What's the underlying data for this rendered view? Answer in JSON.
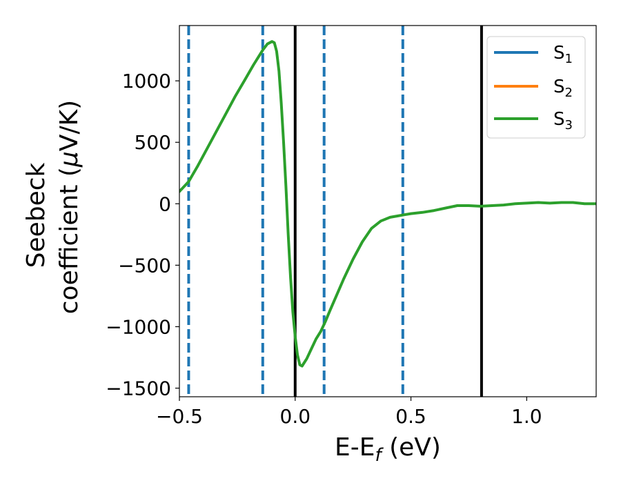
{
  "chart_data": {
    "type": "line",
    "xlabel": "E-E_f (eV)",
    "xlabel_parts": {
      "base": "E-E",
      "sub": "f",
      "unit": " (eV)"
    },
    "ylabel": "Seebeck coefficient (μV/K)",
    "ylabel_lines": [
      "Seebeck",
      "coefficient  (μV/K)"
    ],
    "ylabel_parts": {
      "line2_text": "coefficient  (",
      "mu": "μ",
      "unit": "V/K)"
    },
    "xlim": [
      -0.5,
      1.3
    ],
    "ylim": [
      -1570,
      1450
    ],
    "xticks": [
      -0.5,
      0.0,
      0.5,
      1.0
    ],
    "xtick_labels": [
      "−0.5",
      "0.0",
      "0.5",
      "1.0"
    ],
    "yticks": [
      -1500,
      -1000,
      -500,
      0,
      500,
      1000
    ],
    "ytick_labels": [
      "−1500",
      "−1000",
      "−500",
      "0",
      "500",
      "1000"
    ],
    "grid": false,
    "legend_position": "top-right",
    "series": [
      {
        "name": "S_1",
        "legend_base": "S",
        "legend_sub": "1",
        "color": "#1f77b4"
      },
      {
        "name": "S_2",
        "legend_base": "S",
        "legend_sub": "2",
        "color": "#ff7f0e"
      },
      {
        "name": "S_3",
        "legend_base": "S",
        "legend_sub": "3",
        "color": "#2ca02c",
        "x": [
          -0.5,
          -0.46,
          -0.42,
          -0.38,
          -0.34,
          -0.3,
          -0.26,
          -0.22,
          -0.18,
          -0.14,
          -0.12,
          -0.1,
          -0.09,
          -0.08,
          -0.07,
          -0.06,
          -0.05,
          -0.04,
          -0.03,
          -0.02,
          -0.01,
          0.0,
          0.01,
          0.02,
          0.03,
          0.05,
          0.07,
          0.09,
          0.11,
          0.13,
          0.15,
          0.18,
          0.21,
          0.25,
          0.29,
          0.33,
          0.37,
          0.41,
          0.44,
          0.47,
          0.5,
          0.55,
          0.6,
          0.65,
          0.7,
          0.75,
          0.8,
          0.85,
          0.9,
          0.95,
          1.0,
          1.05,
          1.1,
          1.15,
          1.2,
          1.25,
          1.3
        ],
        "y": [
          100,
          180,
          310,
          450,
          590,
          730,
          870,
          1000,
          1130,
          1250,
          1300,
          1320,
          1310,
          1240,
          1080,
          820,
          500,
          140,
          -250,
          -600,
          -880,
          -1080,
          -1230,
          -1310,
          -1320,
          -1260,
          -1180,
          -1100,
          -1040,
          -960,
          -870,
          -740,
          -610,
          -450,
          -310,
          -200,
          -140,
          -110,
          -100,
          -90,
          -80,
          -70,
          -55,
          -35,
          -15,
          -15,
          -20,
          -15,
          -10,
          0,
          5,
          10,
          5,
          10,
          10,
          0,
          0
        ]
      }
    ],
    "vlines": [
      {
        "x": -0.46,
        "style": "dashed",
        "color": "#1f77b4"
      },
      {
        "x": -0.14,
        "style": "dashed",
        "color": "#1f77b4"
      },
      {
        "x": 0.0,
        "style": "solid",
        "color": "#000000"
      },
      {
        "x": 0.125,
        "style": "dashed",
        "color": "#1f77b4"
      },
      {
        "x": 0.465,
        "style": "dashed",
        "color": "#1f77b4"
      },
      {
        "x": 0.805,
        "style": "solid",
        "color": "#000000"
      }
    ]
  }
}
